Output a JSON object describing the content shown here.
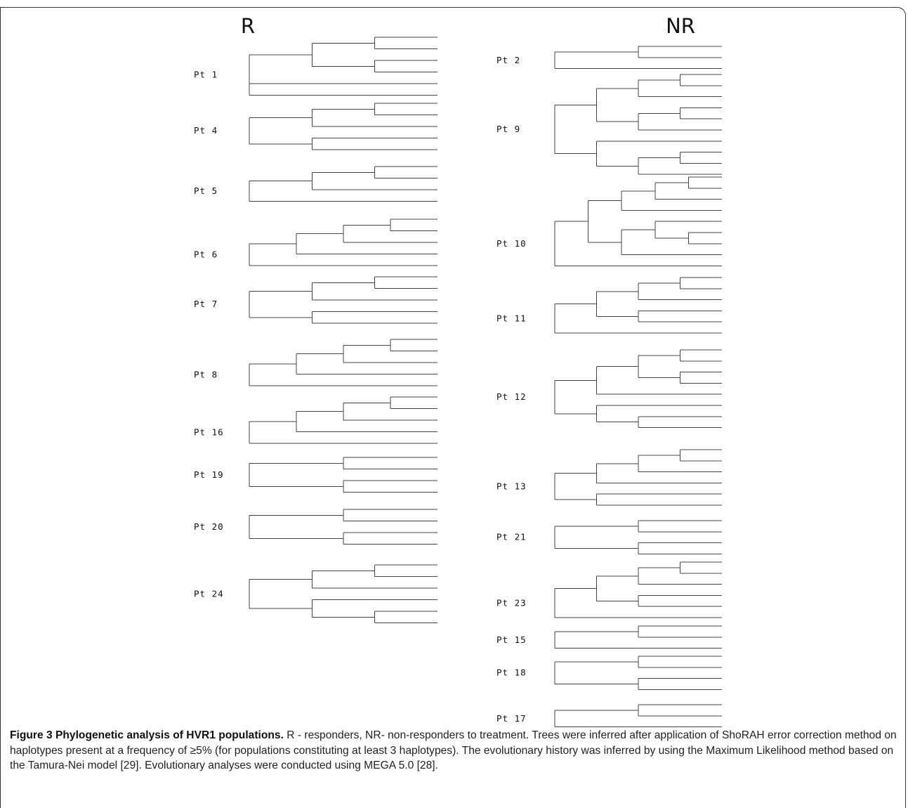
{
  "figure": {
    "columns": [
      {
        "heading": "R",
        "trees": [
          {
            "label": "Pt 1",
            "newick": "(((A,B),(C,D)),E,F)"
          },
          {
            "label": "Pt 4",
            "newick": "(((A,B),C),(D,E))"
          },
          {
            "label": "Pt 5",
            "newick": "(((A,B),C),D)"
          },
          {
            "label": "Pt 6",
            "newick": "((((A,B),C),D),E)"
          },
          {
            "label": "Pt 7",
            "newick": "(((A,B),C),(D,E))"
          },
          {
            "label": "Pt 8",
            "newick": "((((A,B),C),D),E)"
          },
          {
            "label": "Pt 16",
            "newick": "((((A,B),C),D),E)"
          },
          {
            "label": "Pt 19",
            "newick": "((A,B),(C,D))"
          },
          {
            "label": "Pt 20",
            "newick": "((A,B),(C,D))"
          },
          {
            "label": "Pt 24",
            "newick": "(((A,B),C),(D,(E,F)))"
          }
        ]
      },
      {
        "heading": "NR",
        "trees": [
          {
            "label": "Pt 2",
            "newick": "((A,B),C)"
          },
          {
            "label": "Pt 9",
            "newick": "((((A,B),C),((D,E),F)),(G,((H,I),J)))"
          },
          {
            "label": "Pt 10",
            "newick": "(((((A,B),C),D),((E,(F,G)),H)),I)"
          },
          {
            "label": "Pt 11",
            "newick": "((((A,B),C),(D,E)),F)"
          },
          {
            "label": "Pt 12",
            "newick": "((((A,B),(C,D)),E),(F,(G,H)))"
          },
          {
            "label": "Pt 13",
            "newick": "((((A,B),C),D),(E,F))"
          },
          {
            "label": "Pt 21",
            "newick": "((A,B),(C,D))"
          },
          {
            "label": "Pt 23",
            "newick": "((((A,B),C),(D,E)),F)"
          },
          {
            "label": "Pt 15",
            "newick": "((A,B),C)"
          },
          {
            "label": "Pt 18",
            "newick": "((A,B),(C,D))"
          },
          {
            "label": "Pt 17",
            "newick": "((A,B),C)"
          }
        ]
      }
    ]
  },
  "caption": {
    "lead": "Figure 3 Phylogenetic analysis of HVR1 populations.",
    "text": " R - responders, NR- non-responders to treatment. Trees were inferred after application of ShoRAH error correction method on haplotypes present at a frequency of ≥5% (for populations constituting at least 3 haplotypes). The evolutionary history was inferred by using the Maximum Likelihood method based on the Tamura-Nei model [29]. Evolutionary analyses were conducted using MEGA 5.0 [28]."
  }
}
